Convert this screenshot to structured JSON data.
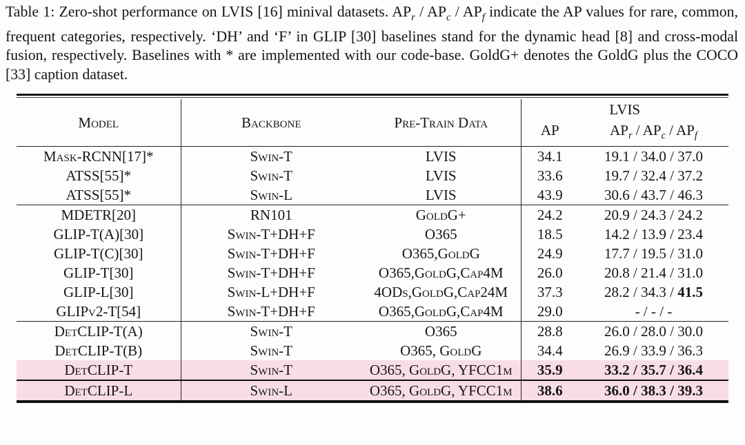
{
  "caption": {
    "part1": "Table 1: Zero-shot performance on LVIS [16] minival datasets. AP",
    "sub_r": "r",
    "part2": " / AP",
    "sub_c": "c",
    "part3": " / AP",
    "sub_f": "f",
    "part4": " indicate the AP values for rare, common, frequent categories, respectively. ‘DH’ and ‘F’ in GLIP [30] baselines stand for the dynamic head [8] and cross-modal fusion, respectively. Baselines with * are implemented with our code-base. GoldG+ denotes the GoldG plus the COCO [33] caption dataset."
  },
  "table": {
    "colors": {
      "highlight": "#f8dde6",
      "rule": "#222222"
    },
    "headers": {
      "model": "Model",
      "backbone": "Backbone",
      "pretrain": "Pre-Train Data",
      "group": "LVIS",
      "ap": "AP",
      "ap_sub": {
        "p1": "AP",
        "r": "r",
        "p2": " / AP",
        "c": "c",
        "p3": " / AP",
        "f": "f"
      }
    },
    "rows": [
      {
        "model": "Mask-RCNN[17]*",
        "backbone": "Swin-T",
        "pretrain": "LVIS",
        "ap": "34.1",
        "aprcf": "19.1 / 34.0 / 37.0"
      },
      {
        "model": "ATSS[55]*",
        "backbone": "Swin-T",
        "pretrain": "LVIS",
        "ap": "33.6",
        "aprcf": "19.7 / 32.4 / 37.2"
      },
      {
        "model": "ATSS[55]*",
        "backbone": "Swin-L",
        "pretrain": "LVIS",
        "ap": "43.9",
        "aprcf": "30.6 / 43.7 / 46.3"
      },
      {
        "model": "MDETR[20]",
        "backbone": "RN101",
        "pretrain": "GoldG+",
        "ap": "24.2",
        "aprcf": "20.9 / 24.3 / 24.2"
      },
      {
        "model": "GLIP-T(A)[30]",
        "backbone": "Swin-T+DH+F",
        "pretrain": "O365",
        "ap": "18.5",
        "aprcf": "14.2 / 13.9 / 23.4"
      },
      {
        "model": "GLIP-T(C)[30]",
        "backbone": "Swin-T+DH+F",
        "pretrain": "O365,GoldG",
        "ap": "24.9",
        "aprcf": "17.7 / 19.5 / 31.0"
      },
      {
        "model": "GLIP-T[30]",
        "backbone": "Swin-T+DH+F",
        "pretrain": "O365,GoldG,Cap4M",
        "ap": "26.0",
        "aprcf": "20.8 / 21.4 / 31.0"
      },
      {
        "model": "GLIP-L[30]",
        "backbone": "Swin-L+DH+F",
        "pretrain": "4ODs,GoldG,Cap24M",
        "ap": "37.3",
        "aprcf_pre": "28.2 / 34.3 / ",
        "aprcf_bold": "41.5"
      },
      {
        "model": "GLIPv2-T[54]",
        "backbone": "Swin-T+DH+F",
        "pretrain": "O365,GoldG,Cap4M",
        "ap": "29.0",
        "aprcf": "-  /  -  /  -"
      },
      {
        "model": "DetCLIP-T(A)",
        "backbone": "Swin-T",
        "pretrain": "O365",
        "ap": "28.8",
        "aprcf": "26.0 / 28.0 / 30.0"
      },
      {
        "model": "DetCLIP-T(B)",
        "backbone": "Swin-T",
        "pretrain": "O365, GoldG",
        "ap": "34.4",
        "aprcf": "26.9 / 33.9 / 36.3"
      },
      {
        "model": "DetCLIP-T",
        "backbone": "Swin-T",
        "pretrain": "O365, GoldG, YFCC1m",
        "ap": "35.9",
        "aprcf": "33.2 / 35.7 / 36.4"
      },
      {
        "model": "DetCLIP-L",
        "backbone": "Swin-L",
        "pretrain": "O365, GoldG, YFCC1m",
        "ap": "38.6",
        "aprcf": "36.0 / 38.3 / 39.3"
      }
    ]
  }
}
